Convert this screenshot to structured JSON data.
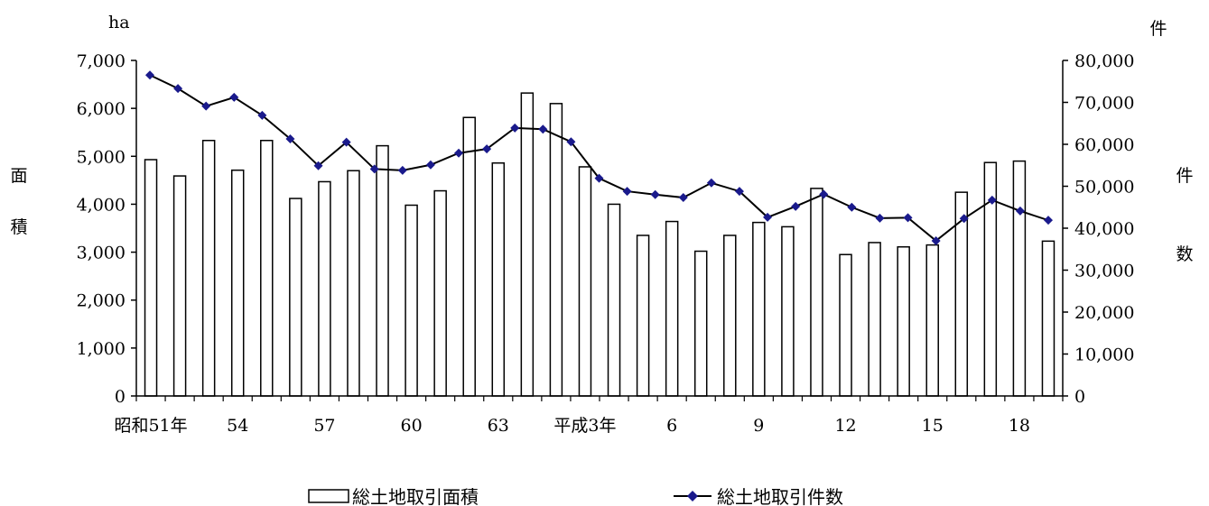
{
  "chart_data": {
    "type": "bar+line",
    "title": "",
    "x_tick_labels": [
      {
        "index": 0,
        "text": "昭和51年"
      },
      {
        "index": 3,
        "text": "54"
      },
      {
        "index": 6,
        "text": "57"
      },
      {
        "index": 9,
        "text": "60"
      },
      {
        "index": 12,
        "text": "63"
      },
      {
        "index": 15,
        "text": "平成3年"
      },
      {
        "index": 18,
        "text": "6"
      },
      {
        "index": 21,
        "text": "9"
      },
      {
        "index": 24,
        "text": "12"
      },
      {
        "index": 27,
        "text": "15"
      },
      {
        "index": 30,
        "text": "18"
      }
    ],
    "left_axis": {
      "unit": "ha",
      "label_chars": [
        "面",
        "積"
      ],
      "ylim": [
        0,
        7000
      ],
      "ticks": [
        0,
        1000,
        2000,
        3000,
        4000,
        5000,
        6000,
        7000
      ],
      "tick_labels": [
        "0",
        "1,000",
        "2,000",
        "3,000",
        "4,000",
        "5,000",
        "6,000",
        "7,000"
      ]
    },
    "right_axis": {
      "unit": "件",
      "label_chars": [
        "件",
        "数"
      ],
      "ylim": [
        0,
        80000
      ],
      "ticks": [
        0,
        10000,
        20000,
        30000,
        40000,
        50000,
        60000,
        70000,
        80000
      ],
      "tick_labels": [
        "0",
        "10,000",
        "20,000",
        "30,000",
        "40,000",
        "50,000",
        "60,000",
        "70,000",
        "80,000"
      ]
    },
    "series": [
      {
        "name": "総土地取引面積",
        "type": "bar",
        "axis": "left",
        "values": [
          4930,
          4590,
          5330,
          4710,
          5330,
          4120,
          4470,
          4700,
          5220,
          3980,
          4280,
          5810,
          4860,
          6320,
          6100,
          4780,
          4000,
          3350,
          3640,
          3020,
          3350,
          3620,
          3530,
          4330,
          2950,
          3200,
          3110,
          3150,
          4250,
          4870,
          4900,
          3230
        ]
      },
      {
        "name": "総土地取引件数",
        "type": "line",
        "axis": "right",
        "values": [
          76500,
          73300,
          69100,
          71200,
          66900,
          61300,
          54900,
          60500,
          54100,
          53800,
          55100,
          57900,
          58900,
          63900,
          63600,
          60600,
          51900,
          48800,
          48000,
          47300,
          50800,
          48800,
          42600,
          45200,
          48100,
          45000,
          42400,
          42500,
          37000,
          42300,
          46700,
          44100,
          41900
        ]
      }
    ],
    "legend": {
      "position": "bottom",
      "items": [
        {
          "label": "総土地取引面積",
          "marker": "open-bar"
        },
        {
          "label": "総土地取引件数",
          "marker": "line-diamond"
        }
      ]
    },
    "colors": {
      "bar_stroke": "#000000",
      "bar_fill": "#ffffff",
      "line": "#000000",
      "marker": "#1a1a8c"
    }
  }
}
